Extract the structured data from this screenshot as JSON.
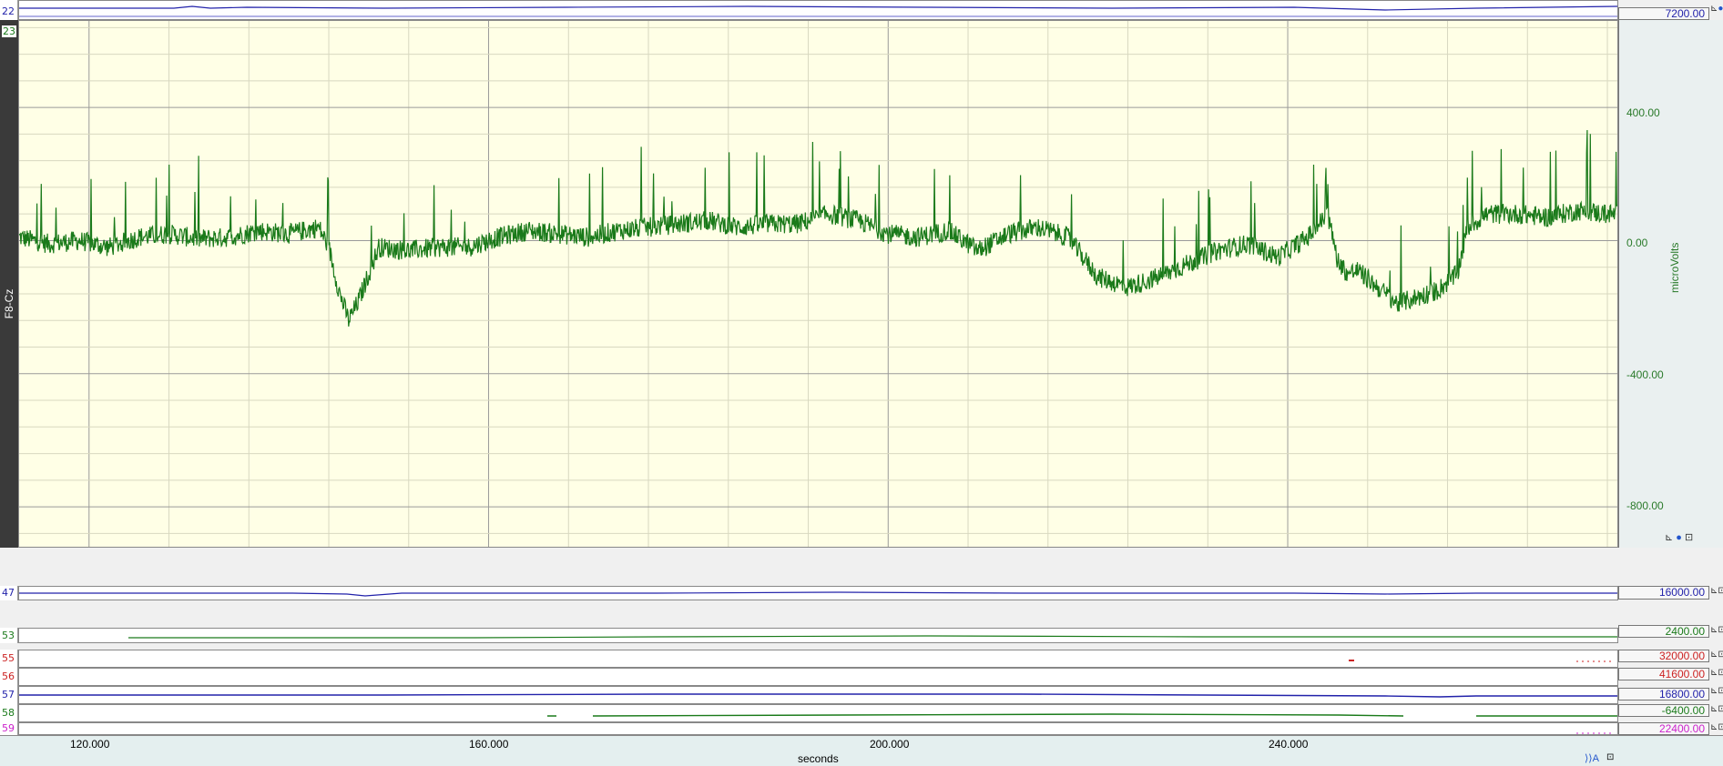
{
  "window": {
    "background": "#f0f0f0"
  },
  "main_channel": {
    "number": "23",
    "label": "F8-Cz",
    "units": "microVolts",
    "plot_bg": "#ffffe6",
    "trace_color": "#1a7a1a",
    "y_ticks": [
      "400.00",
      "0.00",
      "-400.00",
      "-800.00"
    ]
  },
  "strips": [
    {
      "number": "22",
      "value": "7200.00",
      "color": "#2222aa"
    },
    {
      "number": "47",
      "value": "16000.00",
      "color": "#2222aa"
    },
    {
      "number": "53",
      "value": "2400.00",
      "color": "#1a7a1a"
    },
    {
      "number": "55",
      "value": "32000.00",
      "color": "#cc2222"
    },
    {
      "number": "56",
      "value": "41600.00",
      "color": "#cc2222"
    },
    {
      "number": "57",
      "value": "16800.00",
      "color": "#2222aa"
    },
    {
      "number": "58",
      "value": "-6400.00",
      "color": "#1a7a1a"
    },
    {
      "number": "59",
      "value": "22400.00",
      "color": "#cc22cc"
    }
  ],
  "x_axis": {
    "ticks": [
      "120.000",
      "160.000",
      "200.000",
      "240.000"
    ],
    "label": "seconds"
  },
  "chart_data": {
    "type": "line",
    "title": "",
    "xlabel": "seconds",
    "ylabel": "microVolts",
    "xlim": [
      113,
      273
    ],
    "ylim": [
      -920,
      660
    ],
    "series": [
      {
        "name": "F8-Cz",
        "x": [
          113,
          116,
          119,
          122,
          125,
          128,
          131,
          134,
          137,
          140,
          143,
          144,
          145,
          146,
          147,
          149,
          152,
          155,
          158,
          161,
          164,
          167,
          170,
          173,
          176,
          179,
          182,
          185,
          188,
          191,
          194,
          197,
          200,
          203,
          206,
          209,
          212,
          215,
          218,
          221,
          224,
          227,
          230,
          233,
          236,
          239,
          242,
          244,
          245,
          246,
          247,
          249,
          251,
          253,
          255,
          257,
          258,
          260,
          263,
          266,
          269,
          272
        ],
        "y": [
          10,
          -10,
          0,
          -20,
          10,
          20,
          5,
          10,
          30,
          20,
          40,
          -20,
          -150,
          -240,
          -180,
          -20,
          -30,
          -20,
          -20,
          10,
          30,
          20,
          10,
          30,
          40,
          50,
          60,
          40,
          50,
          50,
          80,
          60,
          20,
          10,
          30,
          -30,
          20,
          40,
          10,
          -110,
          -140,
          -110,
          -70,
          -30,
          -10,
          -50,
          10,
          80,
          -60,
          -100,
          -90,
          -140,
          -190,
          -170,
          -150,
          -100,
          40,
          80,
          80,
          70,
          90,
          80
        ]
      }
    ]
  }
}
